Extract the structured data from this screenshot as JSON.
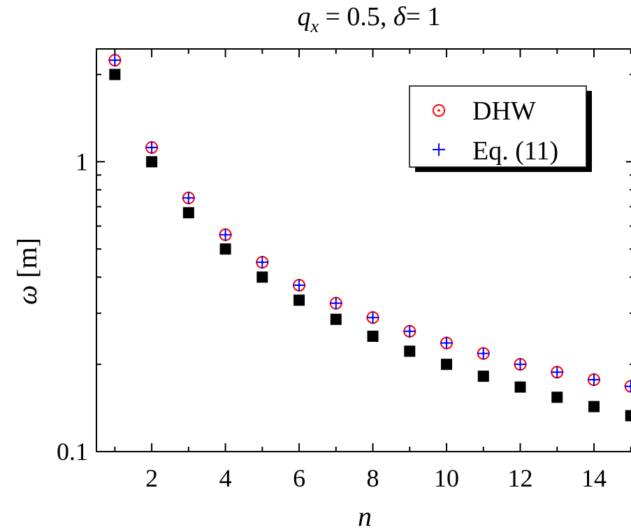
{
  "chart_data": {
    "type": "scatter",
    "title_parts": {
      "q": "q",
      "sub": "x",
      "eq1": " = 0.5, ",
      "delta": "δ",
      "eq2": "= 1"
    },
    "xlabel": "n",
    "ylabel_symbol": "ω",
    "ylabel_unit": " [m]",
    "x_scale": "linear",
    "y_scale": "log",
    "xlim": [
      0.5,
      15.1
    ],
    "ylim": [
      0.1,
      2.45
    ],
    "x_ticks": [
      2,
      4,
      6,
      8,
      10,
      12,
      14
    ],
    "x_tick_labels": [
      "2",
      "4",
      "6",
      "8",
      "10",
      "12",
      "14"
    ],
    "y_ticks": [
      0.1,
      1
    ],
    "y_tick_labels": [
      "0.1",
      "1"
    ],
    "legend_position": "top-right",
    "series": [
      {
        "name": "",
        "marker": "filled-square",
        "color": "#000000",
        "x": [
          1,
          2,
          3,
          4,
          5,
          6,
          7,
          8,
          9,
          10,
          11,
          12,
          13,
          14,
          15
        ],
        "y": [
          2.0,
          1.0,
          0.667,
          0.5,
          0.4,
          0.333,
          0.286,
          0.25,
          0.222,
          0.2,
          0.182,
          0.167,
          0.154,
          0.143,
          0.133
        ]
      },
      {
        "name": "DHW",
        "marker": "open-circle-dot",
        "color": "#ff0000",
        "x": [
          1,
          2,
          3,
          4,
          5,
          6,
          7,
          8,
          9,
          10,
          11,
          12,
          13,
          14,
          15
        ],
        "y": [
          2.24,
          1.12,
          0.75,
          0.56,
          0.45,
          0.375,
          0.325,
          0.29,
          0.26,
          0.237,
          0.218,
          0.2,
          0.188,
          0.177,
          0.168
        ]
      },
      {
        "name": "Eq. (11)",
        "marker": "plus",
        "color": "#0000ff",
        "x": [
          1,
          2,
          3,
          4,
          5,
          6,
          7,
          8,
          9,
          10,
          11,
          12,
          13,
          14,
          15
        ],
        "y": [
          2.24,
          1.12,
          0.75,
          0.56,
          0.45,
          0.375,
          0.325,
          0.29,
          0.26,
          0.237,
          0.218,
          0.2,
          0.188,
          0.177,
          0.168
        ]
      }
    ]
  }
}
